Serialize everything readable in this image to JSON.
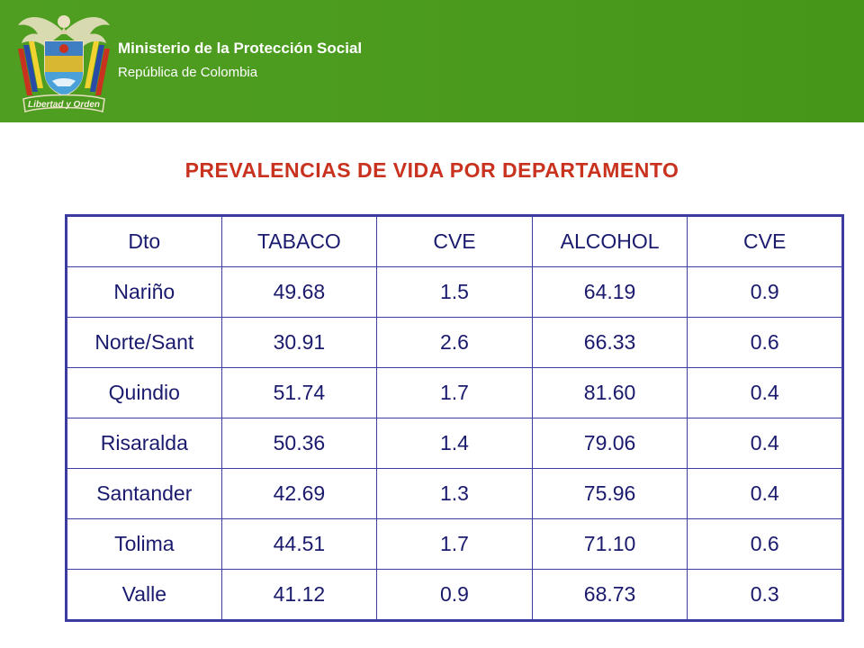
{
  "header": {
    "org_name": "Ministerio de la Protección Social",
    "org_sub": "República de Colombia",
    "motto": "Libertad y Orden",
    "band_color": "#4a9a1e"
  },
  "slide": {
    "title": "PREVALENCIAS DE VIDA POR DEPARTAMENTO",
    "title_color": "#c8321e"
  },
  "table": {
    "border_color": "#3c3ca0",
    "columns": [
      "Dto",
      "TABACO",
      "CVE",
      "ALCOHOL",
      "CVE"
    ],
    "rows": [
      [
        "Nariño",
        "49.68",
        "1.5",
        "64.19",
        "0.9"
      ],
      [
        "Norte/Sant",
        "30.91",
        "2.6",
        "66.33",
        "0.6"
      ],
      [
        "Quindio",
        "51.74",
        "1.7",
        "81.60",
        "0.4"
      ],
      [
        "Risaralda",
        "50.36",
        "1.4",
        "79.06",
        "0.4"
      ],
      [
        "Santander",
        "42.69",
        "1.3",
        "75.96",
        "0.4"
      ],
      [
        "Tolima",
        "44.51",
        "1.7",
        "71.10",
        "0.6"
      ],
      [
        "Valle",
        "41.12",
        "0.9",
        "68.73",
        "0.3"
      ]
    ]
  }
}
